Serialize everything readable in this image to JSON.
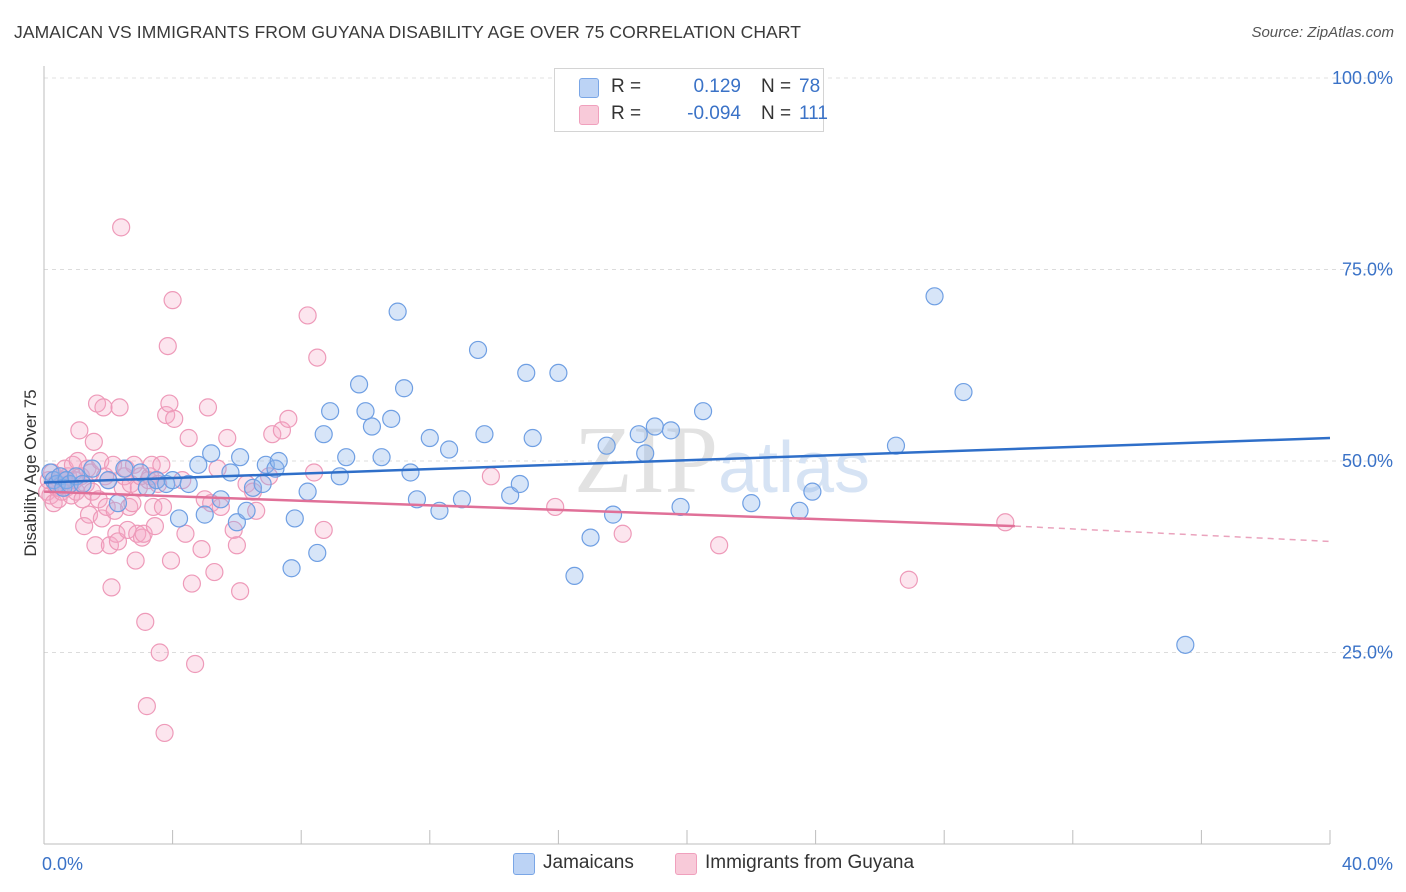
{
  "title": "JAMAICAN VS IMMIGRANTS FROM GUYANA DISABILITY AGE OVER 75 CORRELATION CHART",
  "source": "Source: ZipAtlas.com",
  "watermark": "ZIPatlas",
  "colors": {
    "blue": "#7aa6e6",
    "blue_line": "#2f6fc9",
    "pink": "#f0a0bd",
    "pink_line": "#e07098",
    "axis_text": "#3a72c7"
  },
  "legend": {
    "rows": [
      {
        "r_label": "R =",
        "r_value": "0.129",
        "n_label": "N =",
        "n_value": "78"
      },
      {
        "r_label": "R =",
        "r_value": "-0.094",
        "n_label": "N =",
        "n_value": "111"
      }
    ]
  },
  "bottom_legend": [
    "Jamaicans",
    "Immigrants from Guyana"
  ],
  "chart_data": {
    "type": "scatter",
    "xlabel": "",
    "ylabel": "Disability Age Over 75",
    "xlim": [
      0,
      40
    ],
    "ylim": [
      0,
      100
    ],
    "x_tick_labels": [
      "0.0%",
      "40.0%"
    ],
    "y_tick_labels": [
      "100.0%",
      "75.0%",
      "50.0%",
      "25.0%"
    ],
    "y_ticks": [
      100,
      75,
      50,
      25
    ],
    "grid": true,
    "legend_position": "top-center",
    "series": [
      {
        "name": "Jamaicans",
        "color": "#7aa6e6",
        "trend": {
          "x": [
            0,
            40
          ],
          "y": [
            47.2,
            53.0
          ]
        },
        "points": [
          [
            0.2,
            48.5
          ],
          [
            0.3,
            47.5
          ],
          [
            0.4,
            47.0
          ],
          [
            0.5,
            48.0
          ],
          [
            0.6,
            46.5
          ],
          [
            0.7,
            47.5
          ],
          [
            0.8,
            47.0
          ],
          [
            1.0,
            48.0
          ],
          [
            1.2,
            47.0
          ],
          [
            1.5,
            49.0
          ],
          [
            2.0,
            47.5
          ],
          [
            2.3,
            44.5
          ],
          [
            2.5,
            49.0
          ],
          [
            3.0,
            48.5
          ],
          [
            3.2,
            46.5
          ],
          [
            3.5,
            47.5
          ],
          [
            3.8,
            47.0
          ],
          [
            4.0,
            47.5
          ],
          [
            4.2,
            42.5
          ],
          [
            4.5,
            47.0
          ],
          [
            4.8,
            49.5
          ],
          [
            5.0,
            43.0
          ],
          [
            5.2,
            51.0
          ],
          [
            5.5,
            45.0
          ],
          [
            5.8,
            48.5
          ],
          [
            6.0,
            42.0
          ],
          [
            6.1,
            50.5
          ],
          [
            6.3,
            43.5
          ],
          [
            6.5,
            46.5
          ],
          [
            6.8,
            47.0
          ],
          [
            6.9,
            49.5
          ],
          [
            7.2,
            49.0
          ],
          [
            7.3,
            50.0
          ],
          [
            7.7,
            36.0
          ],
          [
            7.8,
            42.5
          ],
          [
            8.2,
            46.0
          ],
          [
            8.5,
            38.0
          ],
          [
            8.7,
            53.5
          ],
          [
            8.9,
            56.5
          ],
          [
            9.2,
            48.0
          ],
          [
            9.4,
            50.5
          ],
          [
            9.8,
            60.0
          ],
          [
            10.0,
            56.5
          ],
          [
            10.2,
            54.5
          ],
          [
            10.5,
            50.5
          ],
          [
            10.8,
            55.5
          ],
          [
            11.0,
            69.5
          ],
          [
            11.2,
            59.5
          ],
          [
            11.4,
            48.5
          ],
          [
            11.6,
            45.0
          ],
          [
            12.0,
            53.0
          ],
          [
            12.3,
            43.5
          ],
          [
            12.6,
            51.5
          ],
          [
            13.0,
            45.0
          ],
          [
            13.5,
            64.5
          ],
          [
            13.7,
            53.5
          ],
          [
            14.5,
            45.5
          ],
          [
            14.8,
            47.0
          ],
          [
            15.0,
            61.5
          ],
          [
            15.2,
            53.0
          ],
          [
            16.0,
            61.5
          ],
          [
            16.5,
            35.0
          ],
          [
            17.0,
            40.0
          ],
          [
            17.5,
            52.0
          ],
          [
            17.7,
            43.0
          ],
          [
            18.5,
            53.5
          ],
          [
            18.7,
            51.0
          ],
          [
            19.0,
            54.5
          ],
          [
            19.5,
            54.0
          ],
          [
            19.8,
            44.0
          ],
          [
            20.5,
            56.5
          ],
          [
            22.0,
            44.5
          ],
          [
            23.5,
            43.5
          ],
          [
            23.9,
            46.0
          ],
          [
            26.5,
            52.0
          ],
          [
            27.7,
            71.5
          ],
          [
            28.6,
            59.0
          ],
          [
            35.5,
            26.0
          ]
        ]
      },
      {
        "name": "Immigrants from Guyana",
        "color": "#f0a0bd",
        "trend": {
          "x": [
            0,
            30.2
          ],
          "y": [
            46.0,
            41.5
          ]
        },
        "trend_dashed": {
          "x": [
            30.2,
            40
          ],
          "y": [
            41.5,
            39.5
          ]
        },
        "points": [
          [
            0.1,
            46.0
          ],
          [
            0.15,
            47.5
          ],
          [
            0.2,
            45.5
          ],
          [
            0.25,
            48.5
          ],
          [
            0.3,
            44.5
          ],
          [
            0.35,
            47.0
          ],
          [
            0.4,
            46.5
          ],
          [
            0.45,
            45.0
          ],
          [
            0.5,
            48.0
          ],
          [
            0.55,
            46.0
          ],
          [
            0.6,
            47.5
          ],
          [
            0.65,
            49.0
          ],
          [
            0.7,
            46.5
          ],
          [
            0.75,
            48.0
          ],
          [
            0.8,
            47.0
          ],
          [
            0.85,
            45.5
          ],
          [
            0.9,
            49.5
          ],
          [
            0.95,
            47.5
          ],
          [
            1.0,
            46.0
          ],
          [
            1.05,
            50.0
          ],
          [
            1.1,
            54.0
          ],
          [
            1.15,
            48.0
          ],
          [
            1.2,
            45.0
          ],
          [
            1.25,
            41.5
          ],
          [
            1.3,
            47.0
          ],
          [
            1.35,
            49.0
          ],
          [
            1.4,
            43.0
          ],
          [
            1.45,
            48.5
          ],
          [
            1.5,
            46.0
          ],
          [
            1.55,
            52.5
          ],
          [
            1.6,
            39.0
          ],
          [
            1.65,
            57.5
          ],
          [
            1.7,
            45.0
          ],
          [
            1.75,
            50.0
          ],
          [
            1.8,
            42.5
          ],
          [
            1.85,
            57.0
          ],
          [
            1.9,
            48.0
          ],
          [
            1.95,
            44.0
          ],
          [
            2.0,
            47.5
          ],
          [
            2.05,
            39.0
          ],
          [
            2.1,
            33.5
          ],
          [
            2.15,
            49.5
          ],
          [
            2.2,
            43.5
          ],
          [
            2.25,
            40.5
          ],
          [
            2.3,
            39.5
          ],
          [
            2.35,
            57.0
          ],
          [
            2.4,
            80.5
          ],
          [
            2.45,
            46.5
          ],
          [
            2.5,
            48.0
          ],
          [
            2.55,
            49.0
          ],
          [
            2.6,
            41.0
          ],
          [
            2.65,
            44.0
          ],
          [
            2.7,
            47.0
          ],
          [
            2.75,
            44.5
          ],
          [
            2.8,
            49.5
          ],
          [
            2.85,
            37.0
          ],
          [
            2.9,
            40.5
          ],
          [
            2.95,
            46.5
          ],
          [
            3.0,
            48.0
          ],
          [
            3.05,
            40.0
          ],
          [
            3.1,
            40.5
          ],
          [
            3.15,
            29.0
          ],
          [
            3.2,
            18.0
          ],
          [
            3.25,
            47.5
          ],
          [
            3.3,
            48.0
          ],
          [
            3.35,
            49.5
          ],
          [
            3.4,
            44.0
          ],
          [
            3.45,
            41.5
          ],
          [
            3.5,
            47.5
          ],
          [
            3.55,
            47.0
          ],
          [
            3.6,
            25.0
          ],
          [
            3.65,
            49.5
          ],
          [
            3.7,
            44.0
          ],
          [
            3.75,
            14.5
          ],
          [
            3.8,
            56.0
          ],
          [
            3.85,
            65.0
          ],
          [
            3.9,
            57.5
          ],
          [
            3.95,
            37.0
          ],
          [
            4.0,
            71.0
          ],
          [
            4.05,
            55.5
          ],
          [
            4.3,
            47.5
          ],
          [
            4.4,
            40.5
          ],
          [
            4.5,
            53.0
          ],
          [
            4.6,
            34.0
          ],
          [
            4.7,
            23.5
          ],
          [
            4.9,
            38.5
          ],
          [
            5.0,
            45.0
          ],
          [
            5.1,
            57.0
          ],
          [
            5.2,
            44.5
          ],
          [
            5.3,
            35.5
          ],
          [
            5.4,
            49.0
          ],
          [
            5.5,
            44.0
          ],
          [
            5.7,
            53.0
          ],
          [
            5.9,
            41.0
          ],
          [
            6.0,
            39.0
          ],
          [
            6.1,
            33.0
          ],
          [
            6.3,
            47.0
          ],
          [
            6.5,
            46.0
          ],
          [
            6.6,
            43.5
          ],
          [
            7.0,
            48.0
          ],
          [
            7.1,
            53.5
          ],
          [
            7.4,
            54.0
          ],
          [
            7.6,
            55.5
          ],
          [
            8.2,
            69.0
          ],
          [
            8.4,
            48.5
          ],
          [
            8.5,
            63.5
          ],
          [
            8.7,
            41.0
          ],
          [
            13.9,
            48.0
          ],
          [
            15.9,
            44.0
          ],
          [
            18.0,
            40.5
          ],
          [
            21.0,
            39.0
          ],
          [
            26.9,
            34.5
          ],
          [
            29.9,
            42.0
          ]
        ]
      }
    ]
  }
}
